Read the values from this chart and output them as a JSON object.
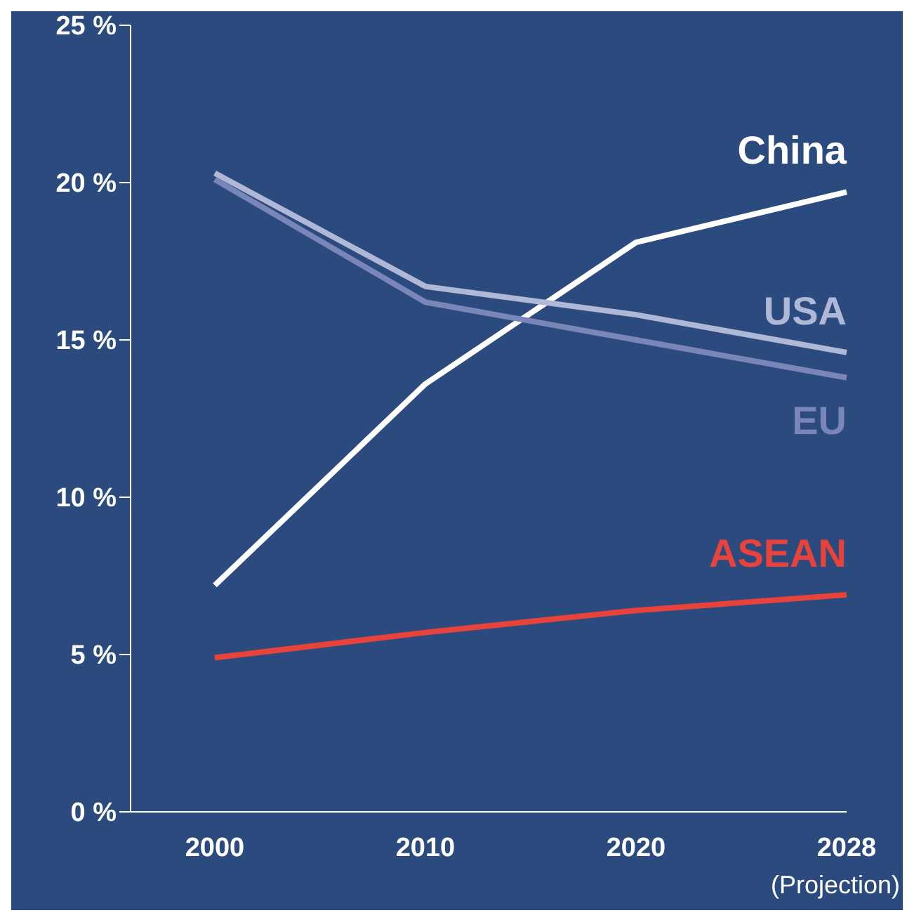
{
  "chart_data": {
    "type": "line",
    "categories": [
      "2000",
      "2010",
      "2020",
      "2028"
    ],
    "series": [
      {
        "name": "China",
        "color": "#ffffff",
        "values": [
          7.2,
          13.6,
          18.1,
          19.7
        ]
      },
      {
        "name": "USA",
        "color": "#b0b8d8",
        "values": [
          20.3,
          16.7,
          15.8,
          14.6
        ]
      },
      {
        "name": "EU",
        "color": "#7a86b8",
        "values": [
          20.1,
          16.2,
          15.0,
          13.8
        ]
      },
      {
        "name": "ASEAN",
        "color": "#e8433a",
        "values": [
          4.9,
          5.7,
          6.4,
          6.9
        ]
      }
    ],
    "ylim": [
      0,
      25
    ],
    "yticks": [
      {
        "value": 0,
        "label": "0 %"
      },
      {
        "value": 5,
        "label": "5 %"
      },
      {
        "value": 10,
        "label": "10 %"
      },
      {
        "value": 15,
        "label": "15 %"
      },
      {
        "value": 20,
        "label": "20 %"
      },
      {
        "value": 25,
        "label": "25 %"
      }
    ],
    "annotations": [
      "(Projection)"
    ],
    "grid": false,
    "legend": false,
    "marker": "none",
    "line_style": "solid"
  }
}
